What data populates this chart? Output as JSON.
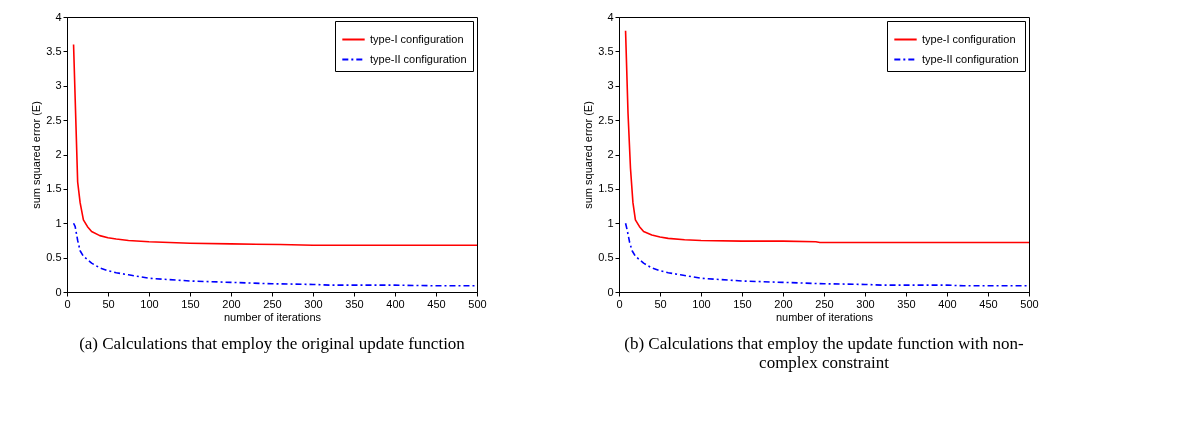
{
  "chart_data": [
    {
      "type": "line",
      "title": "(a) Calculations that employ the original update function",
      "xlabel": "number of iterations",
      "ylabel": "sum squared error (E)",
      "xlim": [
        0,
        500
      ],
      "xticks": [
        0,
        50,
        100,
        150,
        200,
        250,
        300,
        350,
        400,
        450,
        500
      ],
      "ylim": [
        0,
        4
      ],
      "yticks": [
        0,
        0.5,
        1,
        1.5,
        2,
        2.5,
        3,
        3.5,
        4
      ],
      "grid": false,
      "legend": "top right",
      "series": [
        {
          "name": "type-I configuration",
          "color": "#ff0000",
          "line_style": "solid",
          "x": [
            8,
            10,
            13,
            16,
            20,
            25,
            30,
            40,
            50,
            60,
            75,
            100,
            125,
            150,
            200,
            260,
            300,
            400,
            500
          ],
          "values": [
            3.6,
            2.8,
            1.6,
            1.3,
            1.05,
            0.95,
            0.88,
            0.82,
            0.79,
            0.77,
            0.75,
            0.73,
            0.72,
            0.71,
            0.7,
            0.69,
            0.68,
            0.68,
            0.68
          ]
        },
        {
          "name": "type-II configuration",
          "color": "#0000ff",
          "line_style": "dashed",
          "x": [
            8,
            10,
            13,
            16,
            20,
            30,
            40,
            50,
            60,
            75,
            100,
            125,
            150,
            200,
            250,
            300,
            320,
            400,
            450,
            500
          ],
          "values": [
            1.0,
            0.95,
            0.75,
            0.6,
            0.52,
            0.42,
            0.35,
            0.31,
            0.28,
            0.25,
            0.2,
            0.18,
            0.16,
            0.14,
            0.12,
            0.11,
            0.1,
            0.1,
            0.09,
            0.09
          ]
        }
      ]
    },
    {
      "type": "line",
      "title": "(b) Calculations that employ the update function with non-complex constraint",
      "xlabel": "number of iterations",
      "ylabel": "sum squared error (E)",
      "xlim": [
        0,
        500
      ],
      "xticks": [
        0,
        50,
        100,
        150,
        200,
        250,
        300,
        350,
        400,
        450,
        500
      ],
      "ylim": [
        0,
        4
      ],
      "yticks": [
        0,
        0.5,
        1,
        1.5,
        2,
        2.5,
        3,
        3.5,
        4
      ],
      "grid": false,
      "legend": "top right",
      "series": [
        {
          "name": "type-I configuration",
          "color": "#ff0000",
          "line_style": "solid",
          "x": [
            8,
            11,
            14,
            17,
            20,
            25,
            30,
            40,
            50,
            60,
            80,
            100,
            150,
            200,
            240,
            245,
            500
          ],
          "values": [
            3.8,
            2.6,
            1.8,
            1.3,
            1.05,
            0.95,
            0.88,
            0.83,
            0.8,
            0.78,
            0.76,
            0.75,
            0.74,
            0.74,
            0.73,
            0.72,
            0.72
          ]
        },
        {
          "name": "type-II configuration",
          "color": "#0000ff",
          "line_style": "dashed",
          "x": [
            8,
            10,
            13,
            16,
            20,
            30,
            40,
            50,
            60,
            75,
            100,
            125,
            150,
            200,
            250,
            300,
            320,
            400,
            420,
            500
          ],
          "values": [
            1.0,
            0.9,
            0.72,
            0.6,
            0.52,
            0.42,
            0.35,
            0.31,
            0.28,
            0.25,
            0.2,
            0.18,
            0.16,
            0.14,
            0.12,
            0.11,
            0.1,
            0.1,
            0.09,
            0.09
          ]
        }
      ]
    }
  ]
}
